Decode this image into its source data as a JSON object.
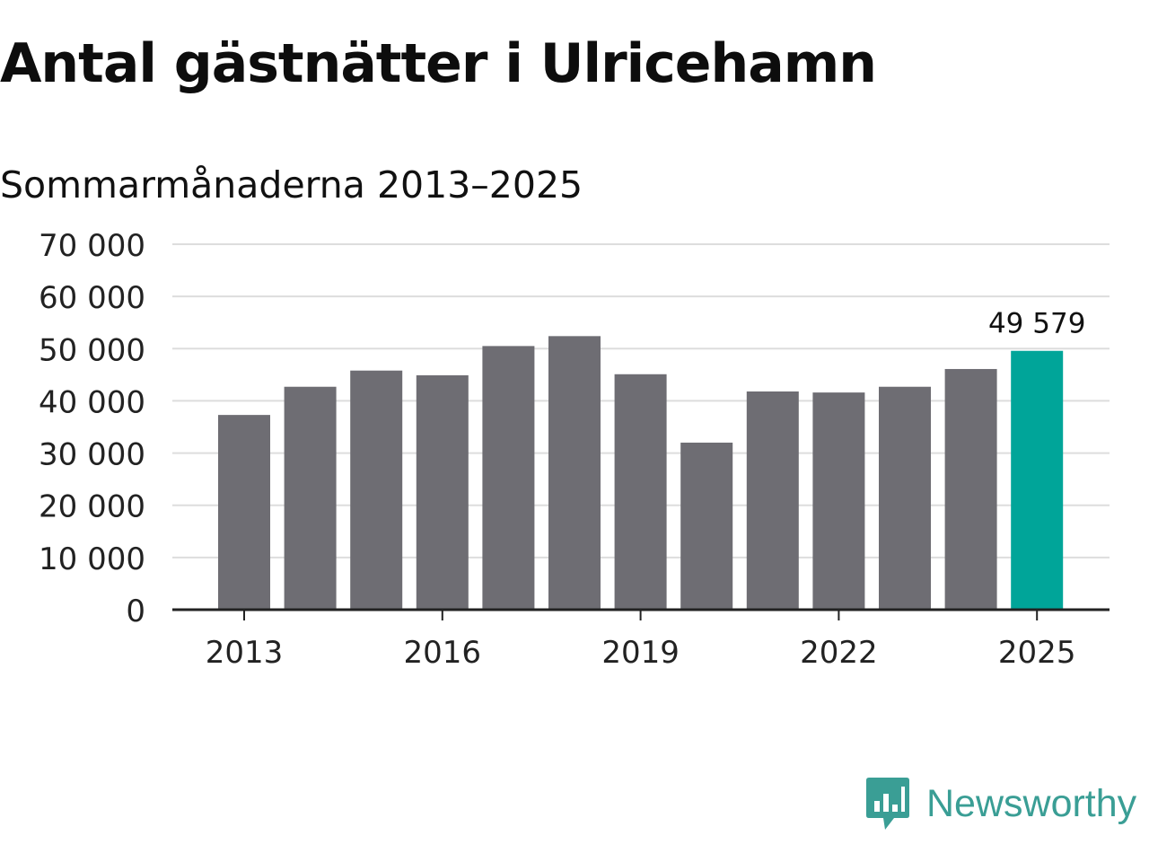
{
  "title": "Antal gästnätter i Ulricehamn",
  "subtitle": "Sommarmånaderna 2013–2025",
  "brand": {
    "name": "Newsworthy",
    "icon": "newsworthy-logo-icon"
  },
  "colors": {
    "bar": "#6e6d73",
    "highlight": "#00a599",
    "grid": "#dddddd",
    "axis": "#222222",
    "brand": "#3a9e95"
  },
  "chart_data": {
    "type": "bar",
    "title": "Antal gästnätter i Ulricehamn",
    "subtitle": "Sommarmånaderna 2013–2025",
    "xlabel": "",
    "ylabel": "",
    "categories": [
      2013,
      2014,
      2015,
      2016,
      2017,
      2018,
      2019,
      2020,
      2021,
      2022,
      2023,
      2024,
      2025
    ],
    "values": [
      37300,
      42700,
      45800,
      44900,
      50500,
      52400,
      45100,
      32000,
      41800,
      41600,
      42700,
      46100,
      49579
    ],
    "highlight_index": 12,
    "annotation": {
      "index": 12,
      "text": "49 579"
    },
    "ylim": [
      0,
      70000
    ],
    "yticks": [
      0,
      10000,
      20000,
      30000,
      40000,
      50000,
      60000,
      70000
    ],
    "ytick_labels": [
      "0",
      "10 000",
      "20 000",
      "30 000",
      "40 000",
      "50 000",
      "60 000",
      "70 000"
    ],
    "xticks": [
      2013,
      2016,
      2019,
      2022,
      2025
    ],
    "xtick_labels": [
      "2013",
      "2016",
      "2019",
      "2022",
      "2025"
    ],
    "grid": true,
    "legend": "none"
  }
}
